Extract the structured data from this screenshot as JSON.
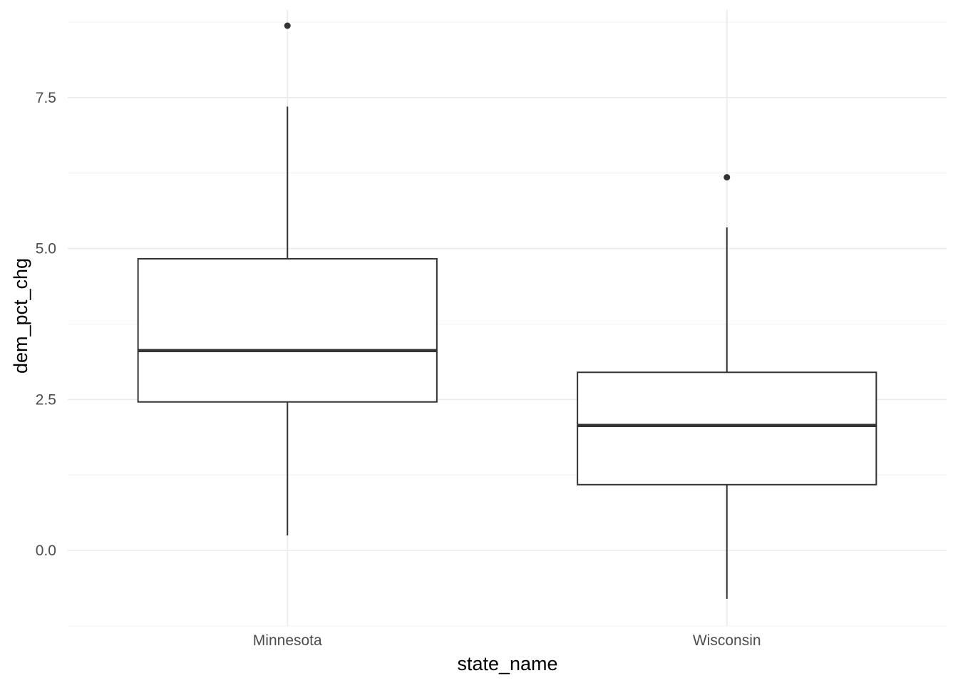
{
  "chart_data": {
    "type": "boxplot",
    "title": "",
    "xlabel": "state_name",
    "ylabel": "dem_pct_chg",
    "ylim": [
      -1.25,
      8.95
    ],
    "yticks": [
      0.0,
      2.5,
      5.0,
      7.5
    ],
    "ytick_labels": [
      "0.0",
      "2.5",
      "5.0",
      "7.5"
    ],
    "categories": [
      "Minnesota",
      "Wisconsin"
    ],
    "boxes": [
      {
        "category": "Minnesota",
        "whisker_low": 0.25,
        "q1": 2.46,
        "median": 3.31,
        "q3": 4.83,
        "whisker_high": 7.35,
        "outliers": [
          8.69
        ]
      },
      {
        "category": "Wisconsin",
        "whisker_low": -0.8,
        "q1": 1.09,
        "median": 2.07,
        "q3": 2.95,
        "whisker_high": 5.35,
        "outliers": [
          6.18
        ]
      }
    ],
    "grid": true,
    "legend": "none",
    "colors": {
      "grid_major": "#ebebeb",
      "grid_minor": "#f3f3f3",
      "box_stroke": "#333333",
      "box_fill": "#ffffff",
      "tick_text": "#4d4d4d",
      "axis_title": "#000000"
    }
  }
}
